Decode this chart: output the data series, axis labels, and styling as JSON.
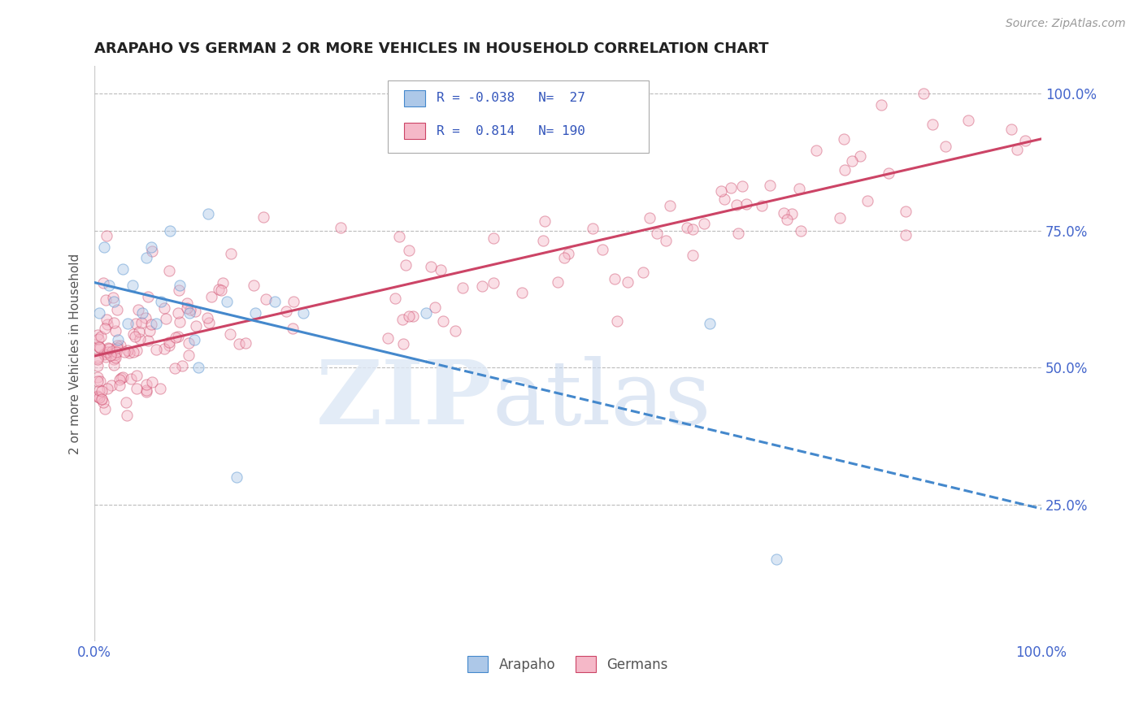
{
  "title": "ARAPAHO VS GERMAN 2 OR MORE VEHICLES IN HOUSEHOLD CORRELATION CHART",
  "source": "Source: ZipAtlas.com",
  "ylabel": "2 or more Vehicles in Household",
  "arapaho_R": -0.038,
  "arapaho_N": 27,
  "german_R": 0.814,
  "german_N": 190,
  "arapaho_color": "#adc8e8",
  "german_color": "#f5b8c8",
  "arapaho_line_color": "#4488cc",
  "german_line_color": "#cc4466",
  "xlim": [
    0,
    100
  ],
  "ylim": [
    0,
    1.05
  ],
  "yticks": [
    0.25,
    0.5,
    0.75,
    1.0
  ],
  "ytick_labels": [
    "25.0%",
    "50.0%",
    "75.0%",
    "100.0%"
  ],
  "xtick_labels": [
    "0.0%",
    "100.0%"
  ],
  "background_color": "#ffffff",
  "grid_color": "#bbbbbb",
  "title_color": "#222222",
  "axis_label_color": "#4466cc",
  "marker_size": 90,
  "marker_alpha": 0.45,
  "marker_edge_width": 0.8,
  "legend_text_color": "#3355bb"
}
